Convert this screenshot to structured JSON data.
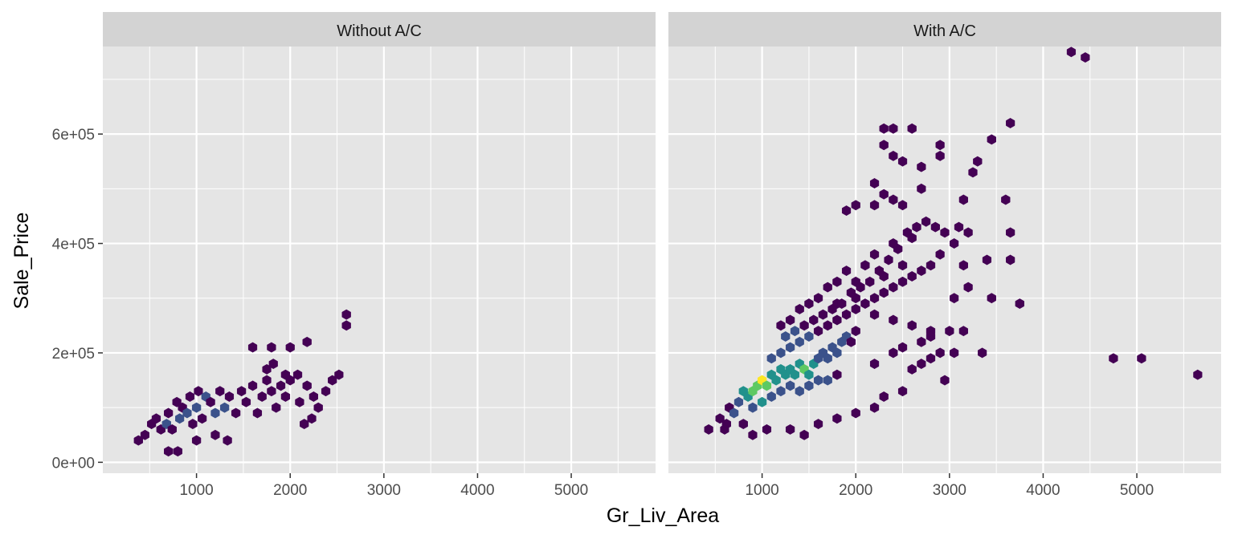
{
  "chart_data": {
    "type": "hexbin",
    "xlabel": "Gr_Liv_Area",
    "ylabel": "Sale_Price",
    "xlim": [
      0,
      5900
    ],
    "ylim": [
      -20000,
      760000
    ],
    "x_ticks": [
      1000,
      2000,
      3000,
      4000,
      5000
    ],
    "x_tick_labels": [
      "1000",
      "2000",
      "3000",
      "4000",
      "5000"
    ],
    "y_ticks": [
      0,
      200000,
      400000,
      600000
    ],
    "y_tick_labels": [
      "0e+00",
      "2e+05",
      "4e+05",
      "6e+05"
    ],
    "colors": {
      "panel_bg": "#e5e5e5",
      "strip_bg": "#d3d3d3",
      "grid": "#ffffff",
      "viridis": [
        "#440154",
        "#3b528b",
        "#21918c",
        "#5ec962",
        "#fde725"
      ]
    },
    "panels": [
      {
        "strip": "Without A/C",
        "hexes": [
          [
            380,
            40000,
            1
          ],
          [
            450,
            50000,
            1
          ],
          [
            520,
            70000,
            1
          ],
          [
            570,
            80000,
            1
          ],
          [
            620,
            60000,
            1
          ],
          [
            680,
            70000,
            2
          ],
          [
            700,
            90000,
            1
          ],
          [
            740,
            60000,
            1
          ],
          [
            790,
            110000,
            1
          ],
          [
            820,
            80000,
            2
          ],
          [
            850,
            100000,
            1
          ],
          [
            900,
            90000,
            2
          ],
          [
            930,
            120000,
            1
          ],
          [
            960,
            70000,
            1
          ],
          [
            1000,
            100000,
            3
          ],
          [
            1020,
            130000,
            1
          ],
          [
            1060,
            80000,
            1
          ],
          [
            1100,
            120000,
            2
          ],
          [
            1150,
            110000,
            1
          ],
          [
            1200,
            90000,
            2
          ],
          [
            1250,
            130000,
            1
          ],
          [
            1300,
            100000,
            2
          ],
          [
            1350,
            120000,
            1
          ],
          [
            1420,
            90000,
            1
          ],
          [
            1480,
            130000,
            1
          ],
          [
            1530,
            110000,
            1
          ],
          [
            1600,
            140000,
            1
          ],
          [
            1650,
            90000,
            1
          ],
          [
            1700,
            120000,
            1
          ],
          [
            1750,
            150000,
            1
          ],
          [
            1800,
            130000,
            1
          ],
          [
            1850,
            100000,
            1
          ],
          [
            1900,
            140000,
            1
          ],
          [
            1950,
            120000,
            1
          ],
          [
            2000,
            150000,
            1
          ],
          [
            2100,
            110000,
            1
          ],
          [
            2180,
            140000,
            1
          ],
          [
            2250,
            120000,
            1
          ],
          [
            2300,
            100000,
            1
          ],
          [
            2380,
            130000,
            1
          ],
          [
            2450,
            150000,
            1
          ],
          [
            2520,
            160000,
            1
          ],
          [
            1000,
            40000,
            1
          ],
          [
            1200,
            50000,
            1
          ],
          [
            1600,
            210000,
            1
          ],
          [
            1800,
            210000,
            1
          ],
          [
            2000,
            210000,
            1
          ],
          [
            2180,
            220000,
            1
          ],
          [
            2600,
            270000,
            1
          ],
          [
            2600,
            250000,
            1
          ],
          [
            700,
            20000,
            1
          ],
          [
            800,
            20000,
            1
          ],
          [
            1330,
            40000,
            1
          ],
          [
            2150,
            70000,
            1
          ],
          [
            2230,
            80000,
            1
          ],
          [
            1750,
            170000,
            1
          ],
          [
            1820,
            180000,
            1
          ],
          [
            1950,
            160000,
            1
          ],
          [
            2080,
            160000,
            1
          ]
        ]
      },
      {
        "strip": "With A/C",
        "hexes": [
          [
            430,
            60000,
            1
          ],
          [
            550,
            80000,
            1
          ],
          [
            620,
            70000,
            1
          ],
          [
            650,
            100000,
            1
          ],
          [
            700,
            90000,
            2
          ],
          [
            750,
            110000,
            2
          ],
          [
            800,
            130000,
            4
          ],
          [
            850,
            120000,
            5
          ],
          [
            900,
            130000,
            6
          ],
          [
            950,
            140000,
            7
          ],
          [
            1000,
            150000,
            9
          ],
          [
            1050,
            140000,
            6
          ],
          [
            1100,
            160000,
            5
          ],
          [
            1150,
            150000,
            4
          ],
          [
            1200,
            170000,
            4
          ],
          [
            1250,
            160000,
            5
          ],
          [
            1300,
            170000,
            5
          ],
          [
            1350,
            160000,
            4
          ],
          [
            1400,
            180000,
            5
          ],
          [
            1450,
            170000,
            6
          ],
          [
            1500,
            160000,
            4
          ],
          [
            1550,
            180000,
            4
          ],
          [
            1600,
            190000,
            3
          ],
          [
            1650,
            200000,
            3
          ],
          [
            1700,
            190000,
            2
          ],
          [
            1750,
            210000,
            2
          ],
          [
            1800,
            200000,
            2
          ],
          [
            1850,
            220000,
            2
          ],
          [
            1900,
            230000,
            2
          ],
          [
            1950,
            220000,
            1
          ],
          [
            2000,
            240000,
            1
          ],
          [
            900,
            100000,
            3
          ],
          [
            1000,
            110000,
            4
          ],
          [
            1100,
            120000,
            3
          ],
          [
            1200,
            130000,
            3
          ],
          [
            1300,
            140000,
            3
          ],
          [
            1400,
            130000,
            2
          ],
          [
            1500,
            140000,
            3
          ],
          [
            1600,
            150000,
            2
          ],
          [
            1700,
            150000,
            2
          ],
          [
            1800,
            160000,
            1
          ],
          [
            1100,
            190000,
            2
          ],
          [
            1200,
            200000,
            2
          ],
          [
            1300,
            210000,
            2
          ],
          [
            1400,
            220000,
            2
          ],
          [
            1500,
            230000,
            2
          ],
          [
            1600,
            240000,
            1
          ],
          [
            1700,
            250000,
            1
          ],
          [
            1800,
            260000,
            1
          ],
          [
            1900,
            270000,
            1
          ],
          [
            2000,
            280000,
            1
          ],
          [
            2100,
            290000,
            1
          ],
          [
            2200,
            300000,
            1
          ],
          [
            2300,
            310000,
            1
          ],
          [
            2400,
            320000,
            1
          ],
          [
            2500,
            330000,
            1
          ],
          [
            2600,
            340000,
            1
          ],
          [
            2700,
            350000,
            1
          ],
          [
            2800,
            360000,
            1
          ],
          [
            2900,
            380000,
            1
          ],
          [
            1900,
            350000,
            1
          ],
          [
            2100,
            360000,
            1
          ],
          [
            2200,
            380000,
            1
          ],
          [
            2400,
            400000,
            1
          ],
          [
            2600,
            410000,
            1
          ],
          [
            1700,
            320000,
            1
          ],
          [
            1800,
            330000,
            1
          ],
          [
            2000,
            330000,
            1
          ],
          [
            2300,
            340000,
            1
          ],
          [
            2500,
            360000,
            1
          ],
          [
            1400,
            280000,
            1
          ],
          [
            1500,
            290000,
            1
          ],
          [
            1600,
            300000,
            1
          ],
          [
            1800,
            290000,
            1
          ],
          [
            2000,
            300000,
            1
          ],
          [
            2200,
            270000,
            1
          ],
          [
            2400,
            260000,
            1
          ],
          [
            2600,
            250000,
            1
          ],
          [
            2800,
            240000,
            1
          ],
          [
            3000,
            240000,
            1
          ],
          [
            1200,
            250000,
            1
          ],
          [
            1300,
            260000,
            1
          ],
          [
            1250,
            230000,
            2
          ],
          [
            1350,
            240000,
            2
          ],
          [
            1450,
            250000,
            1
          ],
          [
            1550,
            260000,
            1
          ],
          [
            1650,
            270000,
            1
          ],
          [
            1750,
            280000,
            1
          ],
          [
            1850,
            290000,
            1
          ],
          [
            1950,
            310000,
            1
          ],
          [
            2050,
            320000,
            1
          ],
          [
            2150,
            330000,
            1
          ],
          [
            2250,
            350000,
            1
          ],
          [
            2350,
            370000,
            1
          ],
          [
            2450,
            390000,
            1
          ],
          [
            2550,
            420000,
            1
          ],
          [
            2650,
            430000,
            1
          ],
          [
            2750,
            440000,
            1
          ],
          [
            2850,
            430000,
            1
          ],
          [
            2950,
            420000,
            1
          ],
          [
            1900,
            460000,
            1
          ],
          [
            2000,
            470000,
            1
          ],
          [
            2200,
            470000,
            1
          ],
          [
            2400,
            480000,
            1
          ],
          [
            2500,
            470000,
            1
          ],
          [
            2200,
            510000,
            1
          ],
          [
            2300,
            490000,
            1
          ],
          [
            2700,
            500000,
            1
          ],
          [
            2300,
            610000,
            1
          ],
          [
            2400,
            610000,
            1
          ],
          [
            2600,
            610000,
            1
          ],
          [
            2300,
            580000,
            1
          ],
          [
            2900,
            580000,
            1
          ],
          [
            2400,
            560000,
            1
          ],
          [
            2900,
            560000,
            1
          ],
          [
            2500,
            550000,
            1
          ],
          [
            2700,
            540000,
            1
          ],
          [
            3250,
            530000,
            1
          ],
          [
            3300,
            550000,
            1
          ],
          [
            3450,
            590000,
            1
          ],
          [
            3650,
            620000,
            1
          ],
          [
            3150,
            480000,
            1
          ],
          [
            3600,
            480000,
            1
          ],
          [
            3100,
            430000,
            1
          ],
          [
            3200,
            420000,
            1
          ],
          [
            3650,
            420000,
            1
          ],
          [
            3050,
            400000,
            1
          ],
          [
            3400,
            370000,
            1
          ],
          [
            3650,
            370000,
            1
          ],
          [
            3150,
            360000,
            1
          ],
          [
            3200,
            320000,
            1
          ],
          [
            3050,
            300000,
            1
          ],
          [
            3450,
            300000,
            1
          ],
          [
            3750,
            290000,
            1
          ],
          [
            3150,
            240000,
            1
          ],
          [
            3050,
            200000,
            1
          ],
          [
            3350,
            200000,
            1
          ],
          [
            2950,
            150000,
            1
          ],
          [
            600,
            60000,
            1
          ],
          [
            800,
            70000,
            1
          ],
          [
            900,
            50000,
            1
          ],
          [
            1050,
            60000,
            1
          ],
          [
            1300,
            60000,
            1
          ],
          [
            1450,
            50000,
            1
          ],
          [
            1600,
            70000,
            1
          ],
          [
            1800,
            80000,
            1
          ],
          [
            2000,
            90000,
            1
          ],
          [
            2200,
            100000,
            1
          ],
          [
            2300,
            120000,
            1
          ],
          [
            2500,
            130000,
            1
          ],
          [
            2600,
            170000,
            1
          ],
          [
            2700,
            180000,
            1
          ],
          [
            2800,
            190000,
            1
          ],
          [
            2900,
            200000,
            1
          ],
          [
            2200,
            180000,
            1
          ],
          [
            2400,
            200000,
            1
          ],
          [
            2500,
            210000,
            1
          ],
          [
            2700,
            220000,
            1
          ],
          [
            2800,
            230000,
            1
          ],
          [
            4300,
            750000,
            1
          ],
          [
            4450,
            740000,
            1
          ],
          [
            4750,
            190000,
            1
          ],
          [
            5050,
            190000,
            1
          ],
          [
            5650,
            160000,
            1
          ]
        ]
      }
    ]
  }
}
